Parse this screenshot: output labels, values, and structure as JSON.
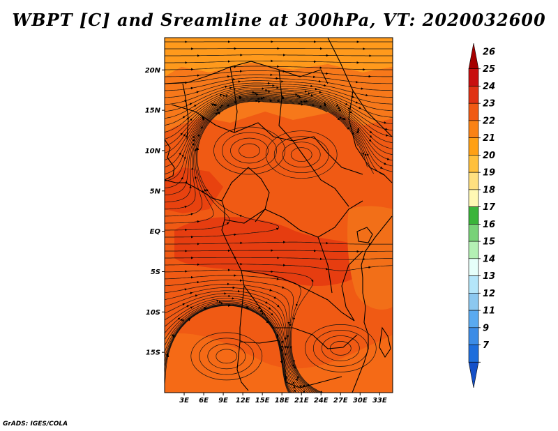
{
  "title": "WBPT [C] and Sreamline at 300hPa, VT: 2020032600",
  "credit": "GrADS: IGES/COLA",
  "map": {
    "lon_range": [
      0,
      35
    ],
    "lat_range": [
      -20,
      24
    ],
    "lat_ticks": [
      {
        "value": 20,
        "label": "20N"
      },
      {
        "value": 15,
        "label": "15N"
      },
      {
        "value": 10,
        "label": "10N"
      },
      {
        "value": 5,
        "label": "5N"
      },
      {
        "value": 0,
        "label": "EQ"
      },
      {
        "value": -5,
        "label": "5S"
      },
      {
        "value": -10,
        "label": "10S"
      },
      {
        "value": -15,
        "label": "15S"
      }
    ],
    "lon_ticks": [
      {
        "value": 3,
        "label": "3E"
      },
      {
        "value": 6,
        "label": "6E"
      },
      {
        "value": 9,
        "label": "9E"
      },
      {
        "value": 12,
        "label": "12E"
      },
      {
        "value": 15,
        "label": "15E"
      },
      {
        "value": 18,
        "label": "18E"
      },
      {
        "value": 21,
        "label": "21E"
      },
      {
        "value": 24,
        "label": "24E"
      },
      {
        "value": 27,
        "label": "27E"
      },
      {
        "value": 30,
        "label": "30E"
      },
      {
        "value": 33,
        "label": "33E"
      }
    ],
    "field_base_color": "#f05a14",
    "regions": [
      {
        "name": "northern-band-22",
        "color": "#ff9a1c"
      },
      {
        "name": "sahel-band-23",
        "color": "#f7781a"
      },
      {
        "name": "west-coast-band-24",
        "color": "#e8420f"
      },
      {
        "name": "gulf-core-band-24",
        "color": "#e63d10"
      },
      {
        "name": "south-band-23",
        "color": "#f56a16"
      },
      {
        "name": "east-africa-band-23",
        "color": "#f26f18"
      }
    ],
    "vortices": [
      {
        "name": "west-africa-anticyclone",
        "lon": 13,
        "lat": 10
      },
      {
        "name": "central-africa-anticyclone",
        "lon": 21,
        "lat": 9.5
      },
      {
        "name": "southwest-cyclone",
        "lon": 9.5,
        "lat": -15.5
      },
      {
        "name": "southeast-anticyclone",
        "lon": 27,
        "lat": -14.5
      }
    ]
  },
  "colorbar": {
    "levels": [
      "26",
      "25",
      "24",
      "23",
      "22",
      "21",
      "20",
      "19",
      "18",
      "17",
      "16",
      "15",
      "14",
      "13",
      "12",
      "11",
      "9",
      "7"
    ],
    "colors": [
      "#a50000",
      "#c80f0f",
      "#e03214",
      "#f05a14",
      "#fa8214",
      "#ffa014",
      "#ffc03c",
      "#ffe080",
      "#fff8b4",
      "#3ab43a",
      "#78d278",
      "#b4f0b4",
      "#e6fffa",
      "#b4e6fa",
      "#8cc8f0",
      "#5aaaf0",
      "#3c8ce6",
      "#1e6edc",
      "#1450c8"
    ]
  }
}
